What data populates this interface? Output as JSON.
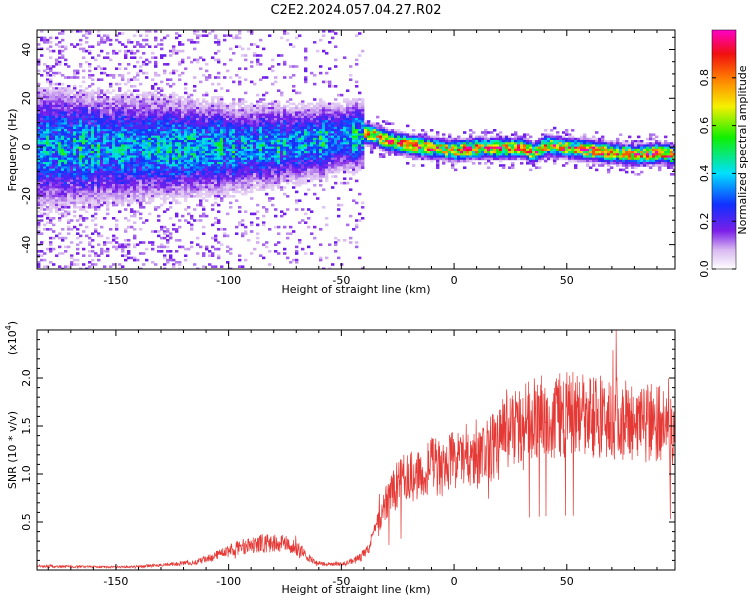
{
  "figure": {
    "title": "C2E2.2024.057.04.27.R02"
  },
  "chart_data": [
    {
      "type": "heatmap",
      "title": "C2E2.2024.057.04.27.R02",
      "xlabel": "Height of straight line (km)",
      "ylabel": "Frequency (Hz)",
      "xlim": [
        -185,
        98
      ],
      "ylim": [
        -50,
        48
      ],
      "x_ticks": [
        -150,
        -100,
        -50,
        0,
        50
      ],
      "y_ticks": [
        -40,
        -20,
        0,
        20,
        40
      ],
      "ridge_profile": {
        "x": [
          -185,
          -150,
          -120,
          -100,
          -80,
          -60,
          -45,
          -40,
          -35,
          -30,
          -25,
          -20,
          -10,
          0,
          10,
          20,
          30,
          35,
          40,
          50,
          60,
          70,
          80,
          90,
          98
        ],
        "y": [
          0,
          0,
          0,
          0,
          1,
          3,
          5,
          6,
          5,
          3,
          2,
          1,
          0,
          -1,
          0,
          0,
          0,
          -2,
          1,
          0,
          -1,
          -2,
          -3,
          -2,
          -3
        ]
      },
      "colorbar": {
        "label": "Normalized spectral amplitude",
        "range": [
          0.0,
          1.0
        ],
        "ticks": [
          "0.0",
          "0.2",
          "0.4",
          "0.6",
          "0.8"
        ],
        "colormap": "rainbow (white-violet-blue-cyan-green-yellow-red-magenta)"
      }
    },
    {
      "type": "line",
      "xlabel": "Height of straight line (km)",
      "ylabel": "SNR (10 * v/v)",
      "y_scale_label": "(x10",
      "y_scale_exponent": "4",
      "series_color": "#e53935",
      "xlim": [
        -185,
        98
      ],
      "ylim": [
        0,
        2.5
      ],
      "x_ticks": [
        -150,
        -100,
        -50,
        0,
        50
      ],
      "y_ticks": [
        "0.5",
        "1.0",
        "1.5",
        "2.0"
      ],
      "envelope": {
        "x": [
          -185,
          -150,
          -130,
          -115,
          -105,
          -95,
          -85,
          -75,
          -68,
          -62,
          -55,
          -48,
          -42,
          -38,
          -34,
          -30,
          -25,
          -20,
          -15,
          -10,
          -5,
          0,
          5,
          10,
          15,
          20,
          25,
          30,
          40,
          50,
          60,
          70,
          80,
          90,
          98
        ],
        "y": [
          0.04,
          0.03,
          0.05,
          0.08,
          0.15,
          0.24,
          0.28,
          0.27,
          0.2,
          0.08,
          0.06,
          0.07,
          0.12,
          0.22,
          0.45,
          0.7,
          0.9,
          1.0,
          0.95,
          1.1,
          1.05,
          1.15,
          1.2,
          1.1,
          1.25,
          1.3,
          1.45,
          1.55,
          1.6,
          1.62,
          1.6,
          1.58,
          1.55,
          1.55,
          1.5
        ]
      }
    }
  ]
}
